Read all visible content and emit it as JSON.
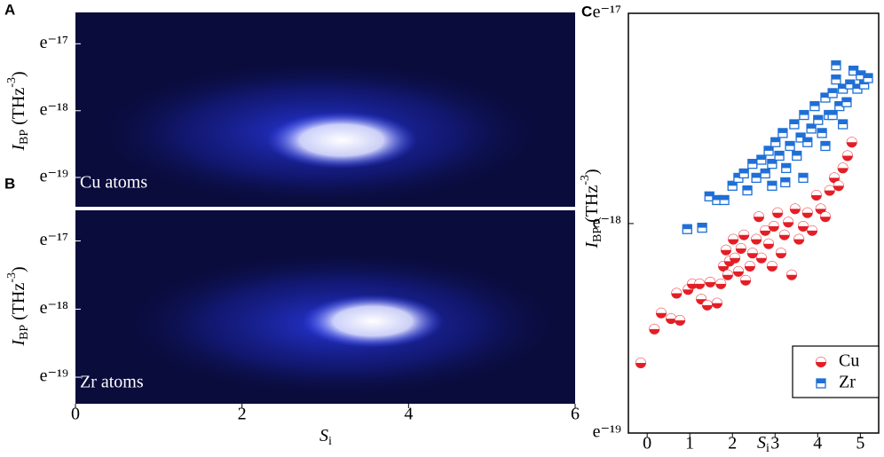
{
  "chart_data": [
    {
      "type": "heatmap",
      "panel_label": "A",
      "annotation": "Cu atoms",
      "y_label": {
        "symbol": "I",
        "subscript": "BP",
        "unit": "(THz",
        "superscript": "-3",
        "close": ")"
      },
      "log_scale": "y",
      "ylim": [
        3.61e-09,
        6.62e-08
      ],
      "yticks": [
        {
          "value": 4.14e-08,
          "label": "e⁻¹⁷"
        },
        {
          "value": 1.52e-08,
          "label": "e⁻¹⁸"
        },
        {
          "value": 5.6e-09,
          "label": "e⁻¹⁹"
        }
      ],
      "xlim": [
        0,
        6
      ],
      "colormap": [
        "#0a0c3c",
        "#1b2bd8",
        "#ffffff"
      ]
    },
    {
      "type": "heatmap",
      "panel_label": "B",
      "annotation": "Zr atoms",
      "y_label": {
        "symbol": "I",
        "subscript": "BP",
        "unit": "(THz",
        "superscript": "-3",
        "close": ")"
      },
      "x_label": {
        "symbol": "S",
        "subscript": "i"
      },
      "log_scale": "y",
      "ylim": [
        3.79e-09,
        6.49e-08
      ],
      "yticks": [
        {
          "value": 4.14e-08,
          "label": "e⁻¹⁷"
        },
        {
          "value": 1.52e-08,
          "label": "e⁻¹⁸"
        },
        {
          "value": 5.6e-09,
          "label": "e⁻¹⁹"
        }
      ],
      "xlim": [
        0,
        6
      ],
      "xticks": [
        0,
        2,
        4,
        6
      ],
      "colormap": [
        "#0a0c3c",
        "#1b2bd8",
        "#ffffff"
      ]
    },
    {
      "type": "scatter",
      "panel_label": "C",
      "y_label": {
        "symbol": "I",
        "subscript": "BP",
        "unit": "(THz",
        "superscript": "-3",
        "close": ")"
      },
      "x_label": {
        "symbol": "S",
        "subscript": "i"
      },
      "log_scale": "y",
      "ylim": [
        5.6e-09,
        4.14e-08
      ],
      "yticks": [
        {
          "value": 4.14e-08,
          "label": "e⁻¹⁷"
        },
        {
          "value": 1.52e-08,
          "label": "e⁻¹⁸"
        },
        {
          "value": 5.6e-09,
          "label": "e⁻¹⁹"
        }
      ],
      "xlim": [
        -0.44,
        5.43
      ],
      "xticks": [
        0,
        1,
        2,
        3,
        4,
        5
      ],
      "legend": "lower right",
      "series": [
        {
          "name": "Cu",
          "color": "#e41e26",
          "marker": "circle",
          "x": [
            -0.15,
            0.17,
            0.33,
            0.56,
            0.77,
            0.69,
            0.96,
            1.06,
            1.23,
            1.27,
            1.41,
            1.48,
            1.64,
            1.73,
            1.79,
            1.85,
            1.89,
            1.93,
            2.02,
            2.06,
            2.14,
            2.2,
            2.27,
            2.31,
            2.41,
            2.47,
            2.56,
            2.62,
            2.68,
            2.77,
            2.85,
            2.93,
            2.97,
            3.06,
            3.14,
            3.22,
            3.31,
            3.39,
            3.47,
            3.56,
            3.66,
            3.76,
            3.87,
            3.97,
            4.07,
            4.18,
            4.28,
            4.39,
            4.49,
            4.59,
            4.7,
            4.8
          ],
          "values": [
            7.82e-09,
            9.19e-09,
            9.92e-09,
            9.66e-09,
            9.58e-09,
            1.09e-08,
            1.11e-08,
            1.14e-08,
            1.14e-08,
            1.06e-08,
            1.03e-08,
            1.15e-08,
            1.04e-08,
            1.14e-08,
            1.24e-08,
            1.34e-08,
            1.19e-08,
            1.27e-08,
            1.41e-08,
            1.29e-08,
            1.21e-08,
            1.35e-08,
            1.44e-08,
            1.16e-08,
            1.24e-08,
            1.32e-08,
            1.41e-08,
            1.57e-08,
            1.29e-08,
            1.47e-08,
            1.38e-08,
            1.24e-08,
            1.5e-08,
            1.6e-08,
            1.32e-08,
            1.44e-08,
            1.53e-08,
            1.19e-08,
            1.63e-08,
            1.41e-08,
            1.5e-08,
            1.6e-08,
            1.47e-08,
            1.74e-08,
            1.63e-08,
            1.57e-08,
            1.78e-08,
            1.89e-08,
            1.82e-08,
            1.98e-08,
            2.1e-08,
            2.24e-08
          ]
        },
        {
          "name": "Zr",
          "color": "#1f6fd6",
          "marker": "square",
          "x": [
            0.94,
            1.29,
            1.46,
            1.64,
            1.81,
            2.0,
            2.14,
            2.27,
            2.35,
            2.47,
            2.56,
            2.68,
            2.77,
            2.85,
            2.93,
            3.01,
            3.1,
            3.18,
            3.26,
            3.35,
            3.45,
            3.51,
            3.6,
            3.68,
            3.76,
            3.85,
            3.93,
            4.01,
            4.1,
            4.18,
            4.26,
            4.35,
            4.43,
            4.51,
            4.59,
            4.68,
            4.76,
            4.84,
            4.93,
            5.01,
            5.09,
            5.18,
            4.43,
            4.35,
            3.66,
            3.24,
            2.93,
            4.59,
            4.18
          ],
          "values": [
            1.48e-08,
            1.49e-08,
            1.73e-08,
            1.7e-08,
            1.7e-08,
            1.82e-08,
            1.89e-08,
            1.93e-08,
            1.78e-08,
            2.02e-08,
            1.89e-08,
            2.06e-08,
            1.93e-08,
            2.15e-08,
            2.02e-08,
            2.24e-08,
            2.1e-08,
            2.34e-08,
            1.98e-08,
            2.2e-08,
            2.44e-08,
            2.1e-08,
            2.29e-08,
            2.55e-08,
            2.24e-08,
            2.39e-08,
            2.66e-08,
            2.49e-08,
            2.34e-08,
            2.77e-08,
            2.55e-08,
            2.83e-08,
            3.02e-08,
            2.66e-08,
            2.89e-08,
            2.71e-08,
            2.95e-08,
            3.15e-08,
            2.89e-08,
            3.08e-08,
            2.95e-08,
            3.04e-08,
            3.23e-08,
            2.55e-08,
            1.89e-08,
            1.85e-08,
            1.82e-08,
            2.44e-08,
            2.2e-08
          ]
        }
      ]
    }
  ]
}
